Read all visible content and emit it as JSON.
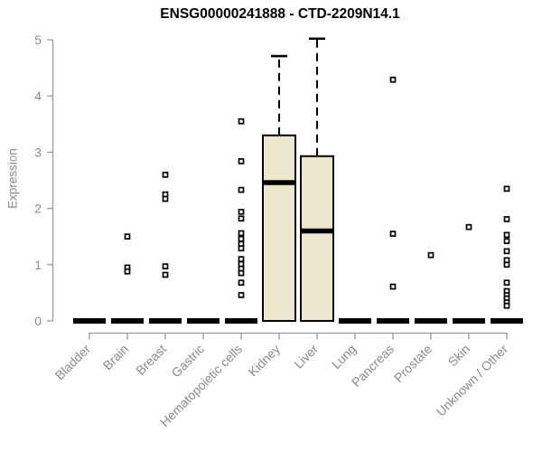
{
  "chart_data": {
    "type": "box",
    "title": "ENSG00000241888 - CTD-2209N14.1",
    "ylabel": "Expression",
    "xlabel": "",
    "ylim": [
      0,
      5
    ],
    "yticks": [
      0,
      1,
      2,
      3,
      4,
      5
    ],
    "grid": false,
    "legend": "none",
    "categories": [
      "Bladder",
      "Brain",
      "Breast",
      "Gastric",
      "Hematopoietic cells",
      "Kidney",
      "Liver",
      "Lung",
      "Pancreas",
      "Prostate",
      "Skin",
      "Unknown / Other"
    ],
    "boxes": [
      {
        "category": "Bladder",
        "low": 0,
        "q1": 0,
        "median": 0,
        "q3": 0,
        "high": 0,
        "outliers": []
      },
      {
        "category": "Brain",
        "low": 0,
        "q1": 0,
        "median": 0,
        "q3": 0,
        "high": 0,
        "outliers": [
          1.5,
          0.95,
          0.88
        ]
      },
      {
        "category": "Breast",
        "low": 0,
        "q1": 0,
        "median": 0,
        "q3": 0,
        "high": 0,
        "outliers": [
          2.6,
          2.25,
          2.17,
          0.97,
          0.82
        ]
      },
      {
        "category": "Gastric",
        "low": 0,
        "q1": 0,
        "median": 0,
        "q3": 0,
        "high": 0,
        "outliers": []
      },
      {
        "category": "Hematopoietic cells",
        "low": 0,
        "q1": 0,
        "median": 0,
        "q3": 0,
        "high": 0,
        "outliers": [
          3.55,
          2.84,
          2.33,
          1.94,
          1.82,
          1.56,
          1.46,
          1.37,
          1.29,
          1.1,
          1.01,
          0.93,
          0.85,
          0.68,
          0.46
        ]
      },
      {
        "category": "Kidney",
        "low": 0,
        "q1": 0,
        "median": 2.46,
        "q3": 3.3,
        "high": 4.71,
        "outliers": []
      },
      {
        "category": "Liver",
        "low": 0,
        "q1": 0,
        "median": 1.6,
        "q3": 2.93,
        "high": 5.02,
        "outliers": []
      },
      {
        "category": "Lung",
        "low": 0,
        "q1": 0,
        "median": 0,
        "q3": 0,
        "high": 0,
        "outliers": []
      },
      {
        "category": "Pancreas",
        "low": 0,
        "q1": 0,
        "median": 0,
        "q3": 0,
        "high": 0,
        "outliers": [
          4.29,
          1.55,
          0.61
        ]
      },
      {
        "category": "Prostate",
        "low": 0,
        "q1": 0,
        "median": 0,
        "q3": 0,
        "high": 0,
        "outliers": [
          1.17
        ]
      },
      {
        "category": "Skin",
        "low": 0,
        "q1": 0,
        "median": 0,
        "q3": 0,
        "high": 0,
        "outliers": [
          1.67
        ]
      },
      {
        "category": "Unknown / Other",
        "low": 0,
        "q1": 0,
        "median": 0,
        "q3": 0,
        "high": 0,
        "outliers": [
          2.35,
          1.81,
          1.53,
          1.42,
          1.24,
          1.08,
          1.0,
          0.68,
          0.53,
          0.46,
          0.4,
          0.33,
          0.27
        ]
      }
    ],
    "colors": {
      "box_fill": "#EDE8CD",
      "box_line": "#000000",
      "median_line": "#000000",
      "whisker_line": "#000000",
      "outlier_stroke": "#000000",
      "axis_line": "#9A9A9A",
      "tick_label": "#8A8A8A",
      "title_color": "#000000",
      "background": "#FFFFFF"
    }
  }
}
